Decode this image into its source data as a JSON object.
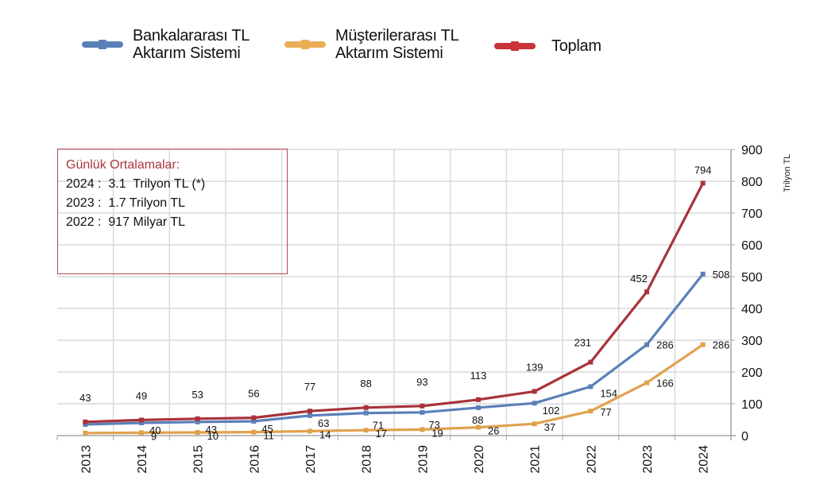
{
  "chart_data": {
    "type": "line",
    "title": "",
    "xlabel": "",
    "ylabel": "Trilyon TL",
    "y_axis_side": "right",
    "ylim": [
      0,
      900
    ],
    "yticks": [
      0,
      100,
      200,
      300,
      400,
      500,
      600,
      700,
      800,
      900
    ],
    "grid": true,
    "legend_position": "top",
    "categories": [
      "2013",
      "2014",
      "2015",
      "2016",
      "2017",
      "2018",
      "2019",
      "2020",
      "2021",
      "2022",
      "2023",
      "2024"
    ],
    "series": [
      {
        "name": "Bankalararası TL\nAktarım Sistemi",
        "color": "#5b80b9",
        "values": [
          35,
          40,
          43,
          45,
          63,
          71,
          73,
          88,
          102,
          154,
          286,
          508
        ],
        "labels": [
          null,
          "40",
          "43",
          "45",
          "63",
          "71",
          "73",
          "88",
          "102",
          "154",
          "286",
          "508"
        ]
      },
      {
        "name": "Müşterilerarası TL\nAktarım Sistemi",
        "color": "#e0a24f",
        "values": [
          8,
          9,
          10,
          11,
          14,
          17,
          19,
          26,
          37,
          77,
          166,
          286
        ],
        "labels": [
          null,
          "9",
          "10",
          "11",
          "14",
          "17",
          "19",
          "26",
          "37",
          "77",
          "166",
          "286"
        ]
      },
      {
        "name": "Toplam",
        "color": "#a8333a",
        "values": [
          43,
          49,
          53,
          56,
          77,
          88,
          93,
          113,
          139,
          231,
          452,
          794
        ],
        "labels": [
          "43",
          "49",
          "53",
          "56",
          "77",
          "88",
          "93",
          "113",
          "139",
          "231",
          "452",
          "794"
        ]
      }
    ]
  },
  "legend": {
    "items": [
      {
        "label": "Bankalararası TL\nAktarım Sistemi",
        "color": "#5b80b9"
      },
      {
        "label": "Müşterilerarası TL\nAktarım Sistemi",
        "color": "#e8ad55"
      },
      {
        "label": "Toplam",
        "color": "#c8343a"
      }
    ]
  },
  "annotation": {
    "title": "Günlük Ortalamalar:",
    "lines": [
      "2024 :  3.1  Trilyon TL (*)",
      "2023 :  1.7 Trilyon TL",
      "2022 :  917 Milyar TL"
    ]
  }
}
